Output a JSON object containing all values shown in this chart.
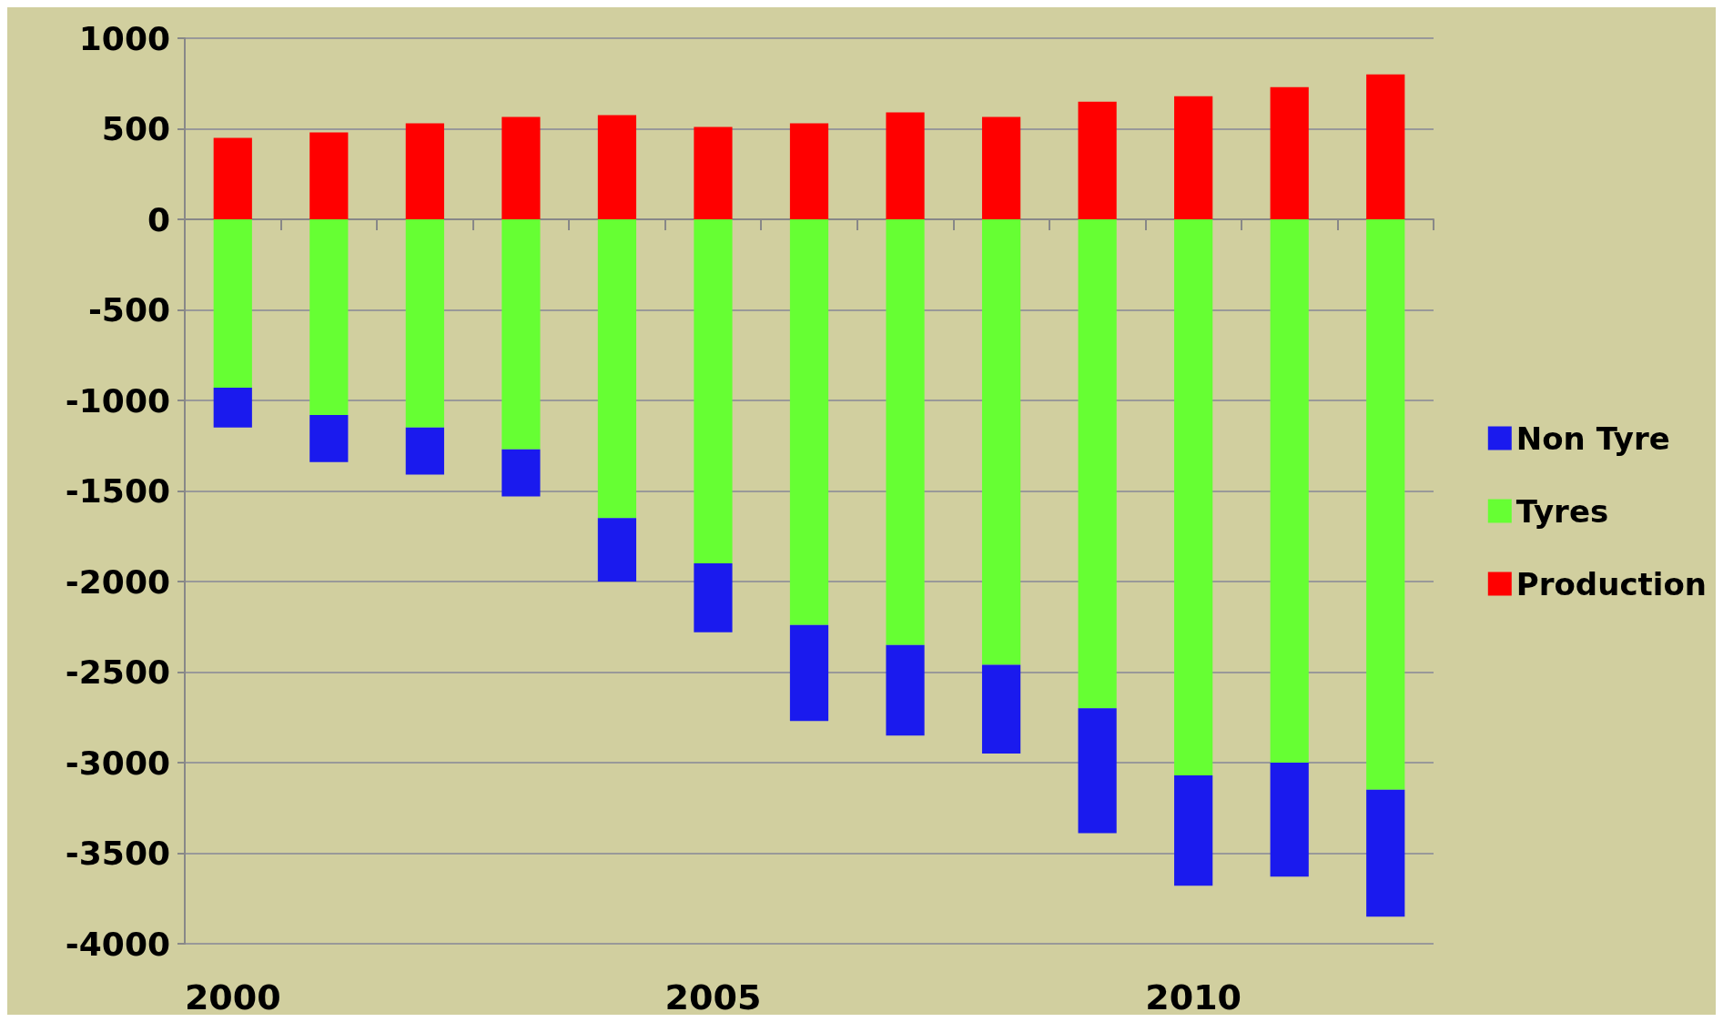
{
  "chart_data": {
    "type": "bar",
    "stacked": true,
    "categories": [
      "2000",
      null,
      null,
      null,
      null,
      "2005",
      null,
      null,
      null,
      null,
      "2010",
      null,
      null
    ],
    "series": [
      {
        "name": "Production",
        "color": "#ff0000",
        "values": [
          450,
          480,
          530,
          565,
          575,
          510,
          530,
          590,
          565,
          650,
          680,
          730,
          800
        ]
      },
      {
        "name": "Tyres",
        "color": "#66ff33",
        "values": [
          -930,
          -1080,
          -1150,
          -1270,
          -1650,
          -1900,
          -2240,
          -2350,
          -2460,
          -2700,
          -3070,
          -3000,
          -3150
        ]
      },
      {
        "name": "Non Tyre",
        "color": "#1a1aee",
        "values": [
          -220,
          -260,
          -260,
          -260,
          -350,
          -380,
          -530,
          -500,
          -490,
          -690,
          -610,
          -630,
          -700
        ]
      }
    ],
    "ylim": [
      -4000,
      1000
    ],
    "yticks": [
      -4000,
      -3500,
      -3000,
      -2500,
      -2000,
      -1500,
      -1000,
      -500,
      0,
      500,
      1000
    ],
    "grid": "y",
    "legend": "right"
  }
}
